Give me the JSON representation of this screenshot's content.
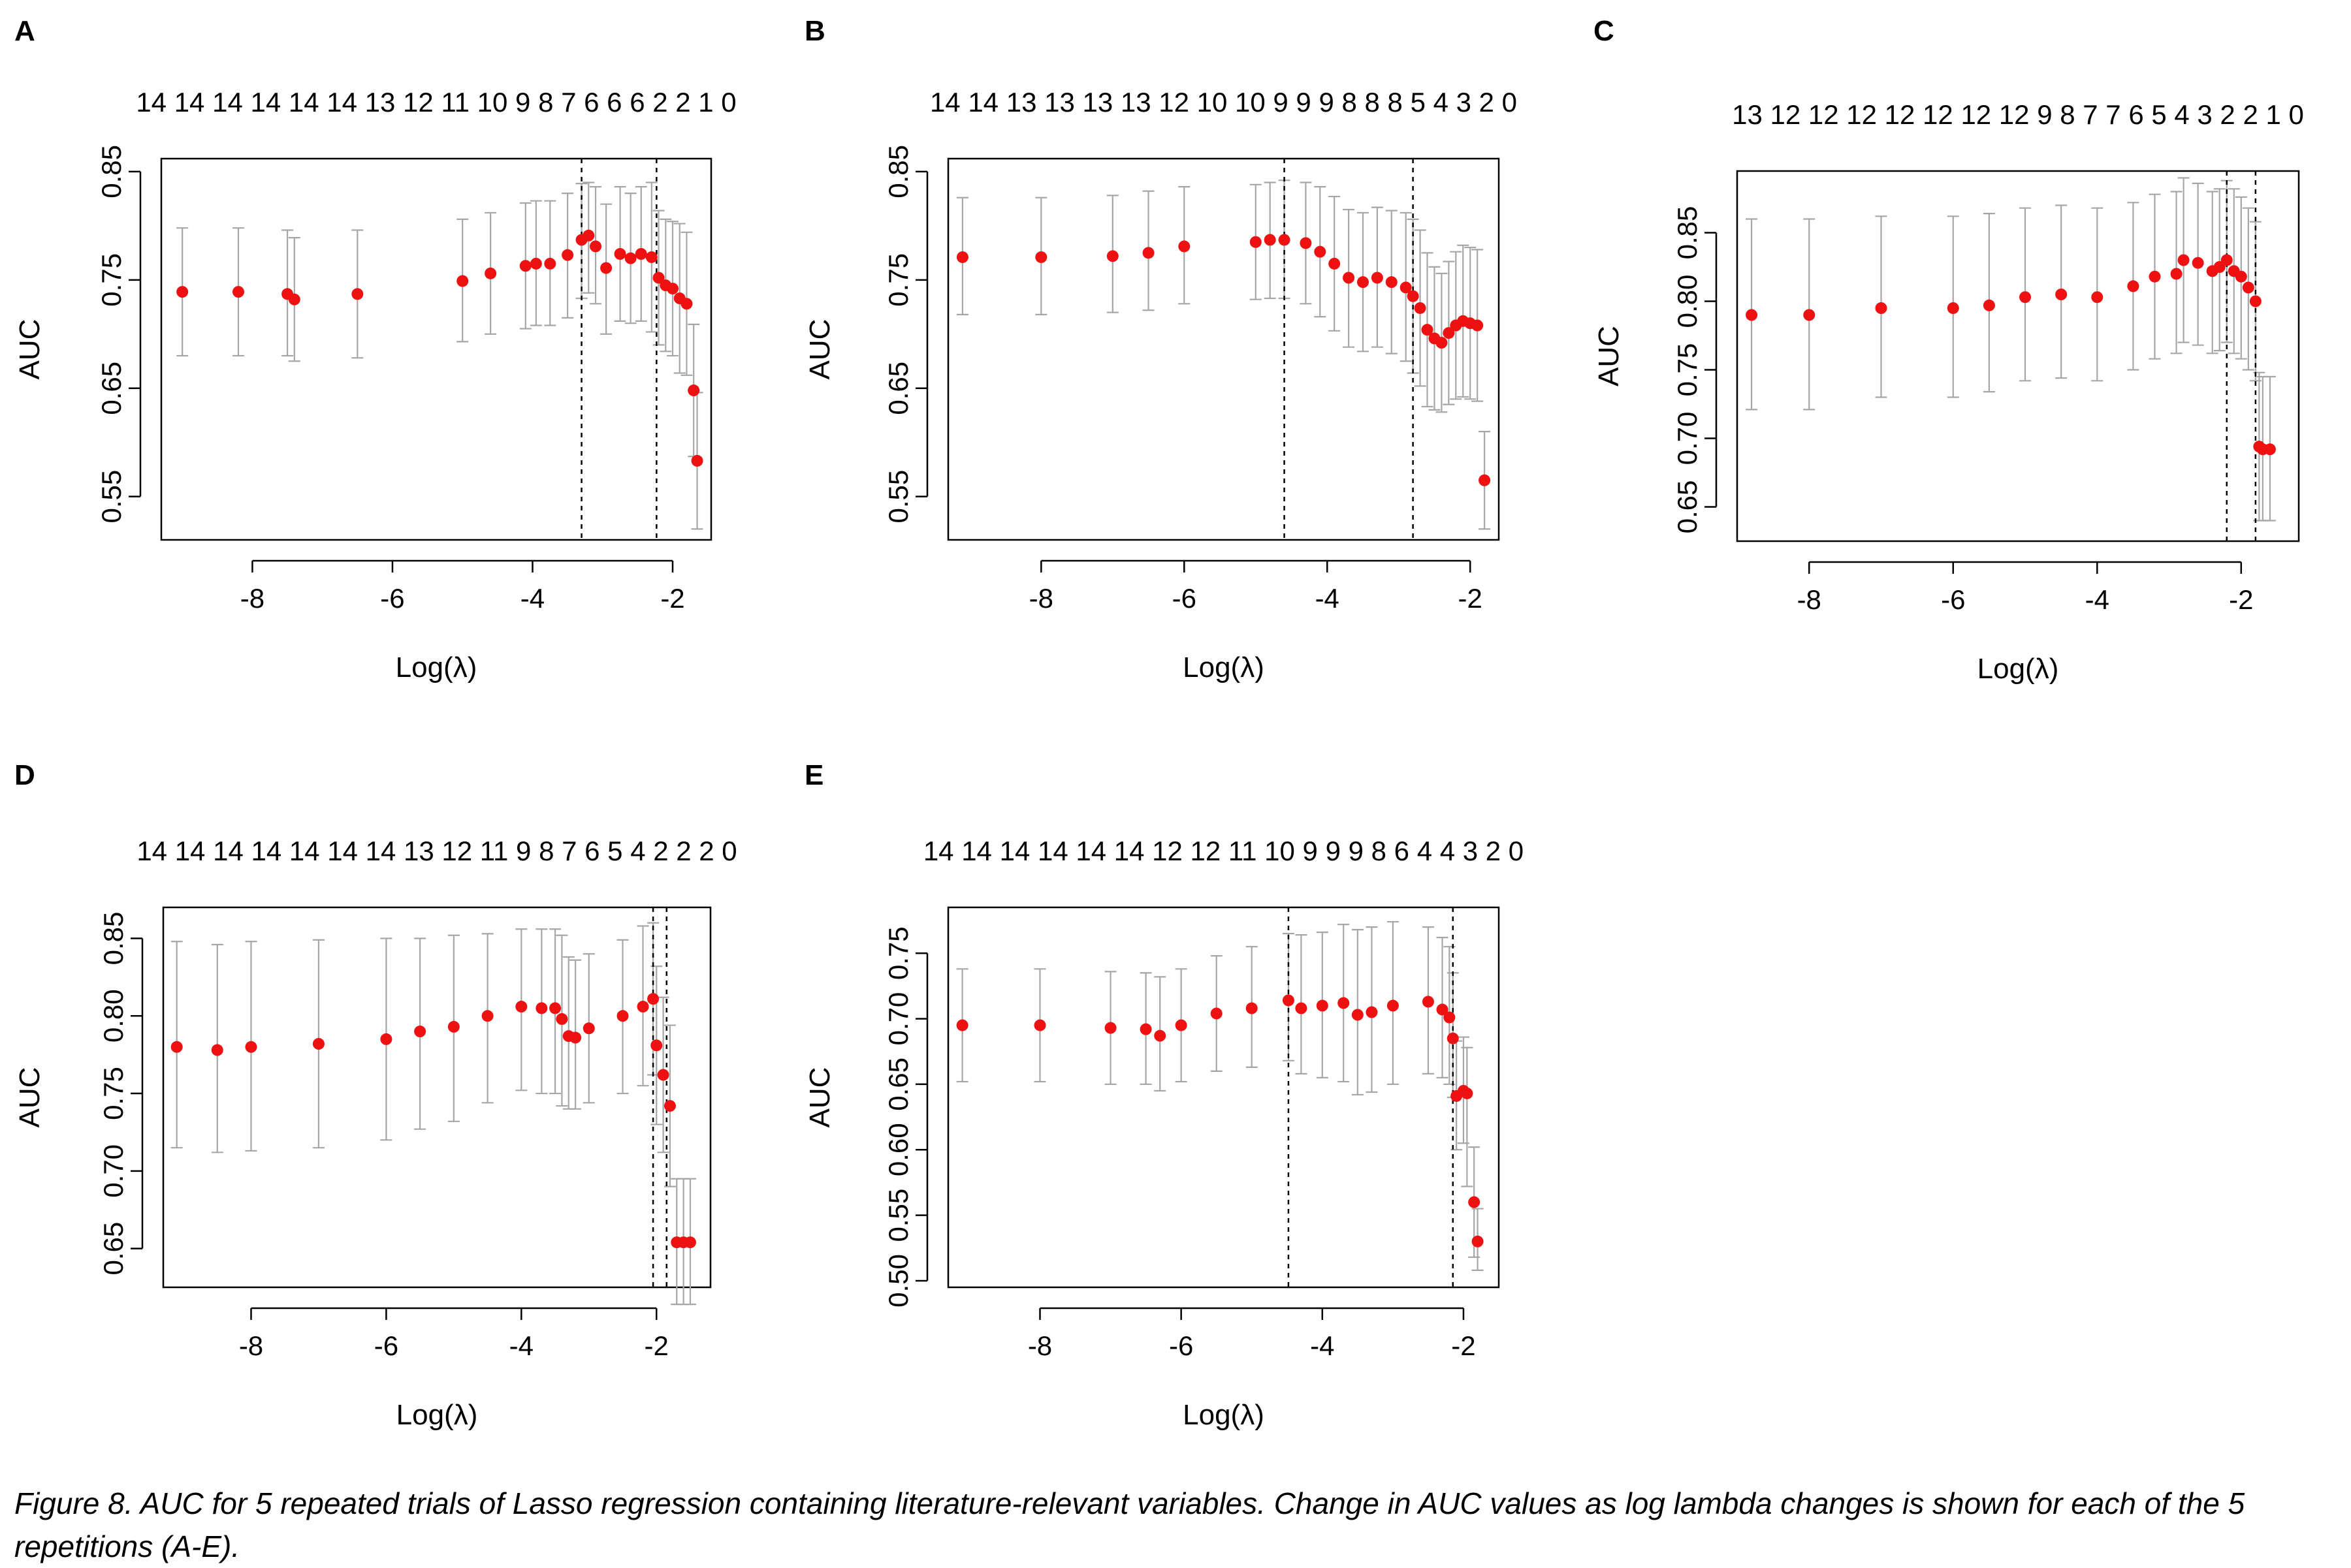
{
  "figure": {
    "caption": "Figure 8. AUC for 5 repeated trials of Lasso regression containing literature-relevant variables. Change in AUC values as log lambda changes is shown for each of the 5 repetitions (A-E)."
  },
  "chart_data": [
    {
      "panel": "A",
      "type": "scatter",
      "top_counts": "14 14 14 14 14 14 13 12 11 10 9 8 7 6 6 6 2 2 1 0",
      "xlabel": "Log(λ)",
      "ylabel": "AUC",
      "xlim": [
        -9.3,
        -1.45
      ],
      "ylim": [
        0.51,
        0.862
      ],
      "xticks": [
        -8,
        -6,
        -4,
        -2
      ],
      "yticks": [
        0.55,
        0.65,
        0.75,
        0.85
      ],
      "vlines": [
        -3.3,
        -2.23
      ],
      "grid": false,
      "legend": "none",
      "point_color": "#ee1111",
      "errorbar_color": "#a6a6a6",
      "x": [
        -9.0,
        -8.2,
        -7.5,
        -7.4,
        -6.5,
        -5.0,
        -4.6,
        -4.1,
        -3.95,
        -3.75,
        -3.5,
        -3.3,
        -3.2,
        -3.1,
        -2.95,
        -2.75,
        -2.6,
        -2.45,
        -2.3,
        -2.2,
        -2.1,
        -2.0,
        -1.9,
        -1.8,
        -1.7,
        -1.65
      ],
      "y": [
        0.739,
        0.739,
        0.737,
        0.732,
        0.737,
        0.749,
        0.756,
        0.763,
        0.765,
        0.765,
        0.773,
        0.787,
        0.791,
        0.781,
        0.761,
        0.774,
        0.77,
        0.774,
        0.771,
        0.752,
        0.745,
        0.742,
        0.733,
        0.728,
        0.648,
        0.583
      ],
      "lower": [
        0.68,
        0.68,
        0.68,
        0.675,
        0.678,
        0.693,
        0.7,
        0.705,
        0.708,
        0.708,
        0.715,
        0.733,
        0.738,
        0.728,
        0.7,
        0.712,
        0.71,
        0.712,
        0.702,
        0.69,
        0.684,
        0.68,
        0.664,
        0.662,
        0.587,
        0.52
      ],
      "upper": [
        0.798,
        0.798,
        0.796,
        0.789,
        0.796,
        0.806,
        0.812,
        0.821,
        0.823,
        0.823,
        0.83,
        0.839,
        0.84,
        0.836,
        0.82,
        0.836,
        0.83,
        0.836,
        0.84,
        0.814,
        0.806,
        0.804,
        0.802,
        0.794,
        0.709,
        0.646
      ]
    },
    {
      "panel": "B",
      "type": "scatter",
      "top_counts": "14 14 13 13 13 13 12 10 10 9 9 9 8 8 8 5 4 3 2 0",
      "xlabel": "Log(λ)",
      "ylabel": "AUC",
      "xlim": [
        -9.3,
        -1.6
      ],
      "ylim": [
        0.51,
        0.862
      ],
      "xticks": [
        -8,
        -6,
        -4,
        -2
      ],
      "yticks": [
        0.55,
        0.65,
        0.75,
        0.85
      ],
      "vlines": [
        -4.6,
        -2.8
      ],
      "grid": false,
      "legend": "none",
      "point_color": "#ee1111",
      "errorbar_color": "#a6a6a6",
      "x": [
        -9.1,
        -8.0,
        -7.0,
        -6.5,
        -6.0,
        -5.0,
        -4.8,
        -4.6,
        -4.3,
        -4.1,
        -3.9,
        -3.7,
        -3.5,
        -3.3,
        -3.1,
        -2.9,
        -2.8,
        -2.7,
        -2.6,
        -2.5,
        -2.4,
        -2.3,
        -2.2,
        -2.1,
        -2.0,
        -1.9,
        -1.8
      ],
      "y": [
        0.771,
        0.771,
        0.772,
        0.775,
        0.781,
        0.785,
        0.787,
        0.787,
        0.784,
        0.776,
        0.765,
        0.752,
        0.748,
        0.752,
        0.748,
        0.743,
        0.735,
        0.724,
        0.704,
        0.696,
        0.692,
        0.701,
        0.708,
        0.712,
        0.71,
        0.708,
        0.565
      ],
      "lower": [
        0.718,
        0.718,
        0.72,
        0.722,
        0.728,
        0.732,
        0.733,
        0.733,
        0.728,
        0.716,
        0.703,
        0.688,
        0.684,
        0.688,
        0.682,
        0.675,
        0.664,
        0.652,
        0.633,
        0.63,
        0.628,
        0.635,
        0.64,
        0.642,
        0.64,
        0.638,
        0.52
      ],
      "upper": [
        0.826,
        0.826,
        0.828,
        0.832,
        0.836,
        0.838,
        0.84,
        0.842,
        0.84,
        0.836,
        0.827,
        0.815,
        0.812,
        0.817,
        0.814,
        0.812,
        0.806,
        0.796,
        0.775,
        0.762,
        0.756,
        0.767,
        0.776,
        0.782,
        0.78,
        0.778,
        0.61
      ]
    },
    {
      "panel": "C",
      "type": "scatter",
      "top_counts": "13 12 12 12 12 12 12 12 9 8 7 7 6 5 4 3 2 2 1 0",
      "xlabel": "Log(λ)",
      "ylabel": "AUC",
      "xlim": [
        -9.0,
        -1.2
      ],
      "ylim": [
        0.625,
        0.895
      ],
      "xticks": [
        -8,
        -6,
        -4,
        -2
      ],
      "yticks": [
        0.65,
        0.7,
        0.75,
        0.8,
        0.85
      ],
      "vlines": [
        -2.2,
        -1.8
      ],
      "grid": false,
      "legend": "none",
      "point_color": "#ee1111",
      "errorbar_color": "#a6a6a6",
      "x": [
        -8.8,
        -8.0,
        -7.0,
        -6.0,
        -5.5,
        -5.0,
        -4.5,
        -4.0,
        -3.5,
        -3.2,
        -2.9,
        -2.8,
        -2.6,
        -2.4,
        -2.3,
        -2.2,
        -2.1,
        -2.0,
        -1.9,
        -1.8,
        -1.75,
        -1.7,
        -1.6
      ],
      "y": [
        0.79,
        0.79,
        0.795,
        0.795,
        0.797,
        0.803,
        0.805,
        0.803,
        0.811,
        0.818,
        0.82,
        0.83,
        0.828,
        0.822,
        0.825,
        0.83,
        0.822,
        0.818,
        0.81,
        0.8,
        0.694,
        0.692,
        0.692
      ],
      "lower": [
        0.721,
        0.721,
        0.73,
        0.73,
        0.734,
        0.742,
        0.744,
        0.742,
        0.75,
        0.758,
        0.762,
        0.77,
        0.768,
        0.762,
        0.764,
        0.77,
        0.762,
        0.758,
        0.75,
        0.742,
        0.64,
        0.64,
        0.64
      ],
      "upper": [
        0.86,
        0.86,
        0.862,
        0.862,
        0.864,
        0.868,
        0.87,
        0.868,
        0.872,
        0.878,
        0.88,
        0.89,
        0.886,
        0.88,
        0.882,
        0.888,
        0.882,
        0.876,
        0.868,
        0.858,
        0.748,
        0.745,
        0.745
      ]
    },
    {
      "panel": "D",
      "type": "scatter",
      "top_counts": "14 14 14 14 14 14 14 13 12 11 9 8 7 6 5 4 2 2 2 0",
      "xlabel": "Log(λ)",
      "ylabel": "AUC",
      "xlim": [
        -9.3,
        -1.2
      ],
      "ylim": [
        0.625,
        0.87
      ],
      "xticks": [
        -8,
        -6,
        -4,
        -2
      ],
      "yticks": [
        0.65,
        0.7,
        0.75,
        0.8,
        0.85
      ],
      "vlines": [
        -2.05,
        -1.85
      ],
      "grid": false,
      "legend": "none",
      "point_color": "#ee1111",
      "errorbar_color": "#a6a6a6",
      "x": [
        -9.1,
        -8.5,
        -8.0,
        -7.0,
        -6.0,
        -5.5,
        -5.0,
        -4.5,
        -4.0,
        -3.7,
        -3.5,
        -3.4,
        -3.3,
        -3.2,
        -3.0,
        -2.5,
        -2.2,
        -2.05,
        -2.0,
        -1.9,
        -1.8,
        -1.7,
        -1.6,
        -1.5
      ],
      "y": [
        0.78,
        0.778,
        0.78,
        0.782,
        0.785,
        0.79,
        0.793,
        0.8,
        0.806,
        0.805,
        0.805,
        0.798,
        0.787,
        0.786,
        0.792,
        0.8,
        0.806,
        0.811,
        0.781,
        0.762,
        0.742,
        0.654,
        0.654,
        0.654
      ],
      "lower": [
        0.715,
        0.712,
        0.713,
        0.715,
        0.72,
        0.727,
        0.732,
        0.744,
        0.752,
        0.75,
        0.75,
        0.742,
        0.74,
        0.74,
        0.744,
        0.75,
        0.755,
        0.762,
        0.73,
        0.712,
        0.69,
        0.614,
        0.614,
        0.614
      ],
      "upper": [
        0.848,
        0.846,
        0.848,
        0.849,
        0.85,
        0.85,
        0.852,
        0.853,
        0.856,
        0.856,
        0.856,
        0.852,
        0.838,
        0.836,
        0.84,
        0.849,
        0.858,
        0.86,
        0.832,
        0.812,
        0.794,
        0.695,
        0.695,
        0.695
      ]
    },
    {
      "panel": "E",
      "type": "scatter",
      "top_counts": "14 14 14 14 14 14 12 12 11 10 9 9 9 8 6 4 4 3 2 0",
      "xlabel": "Log(λ)",
      "ylabel": "AUC",
      "xlim": [
        -9.3,
        -1.5
      ],
      "ylim": [
        0.495,
        0.785
      ],
      "xticks": [
        -8,
        -6,
        -4,
        -2
      ],
      "yticks": [
        0.5,
        0.55,
        0.6,
        0.65,
        0.7,
        0.75
      ],
      "vlines": [
        -4.48,
        -2.15
      ],
      "grid": false,
      "legend": "none",
      "point_color": "#ee1111",
      "errorbar_color": "#a6a6a6",
      "x": [
        -9.1,
        -8.0,
        -7.0,
        -6.5,
        -6.3,
        -6.0,
        -5.5,
        -5.0,
        -4.48,
        -4.3,
        -4.0,
        -3.7,
        -3.5,
        -3.3,
        -3.0,
        -2.5,
        -2.3,
        -2.2,
        -2.15,
        -2.1,
        -2.0,
        -1.95,
        -1.85,
        -1.8
      ],
      "y": [
        0.695,
        0.695,
        0.693,
        0.692,
        0.687,
        0.695,
        0.704,
        0.708,
        0.714,
        0.708,
        0.71,
        0.712,
        0.703,
        0.705,
        0.71,
        0.713,
        0.707,
        0.701,
        0.685,
        0.641,
        0.645,
        0.643,
        0.56,
        0.53
      ],
      "lower": [
        0.652,
        0.652,
        0.65,
        0.65,
        0.645,
        0.652,
        0.66,
        0.663,
        0.668,
        0.658,
        0.655,
        0.652,
        0.642,
        0.644,
        0.65,
        0.658,
        0.655,
        0.65,
        0.64,
        0.6,
        0.605,
        0.572,
        0.518,
        0.508
      ],
      "upper": [
        0.738,
        0.738,
        0.736,
        0.735,
        0.732,
        0.738,
        0.748,
        0.755,
        0.765,
        0.764,
        0.766,
        0.772,
        0.768,
        0.77,
        0.774,
        0.77,
        0.762,
        0.755,
        0.735,
        0.683,
        0.686,
        0.678,
        0.602,
        0.555
      ]
    }
  ]
}
